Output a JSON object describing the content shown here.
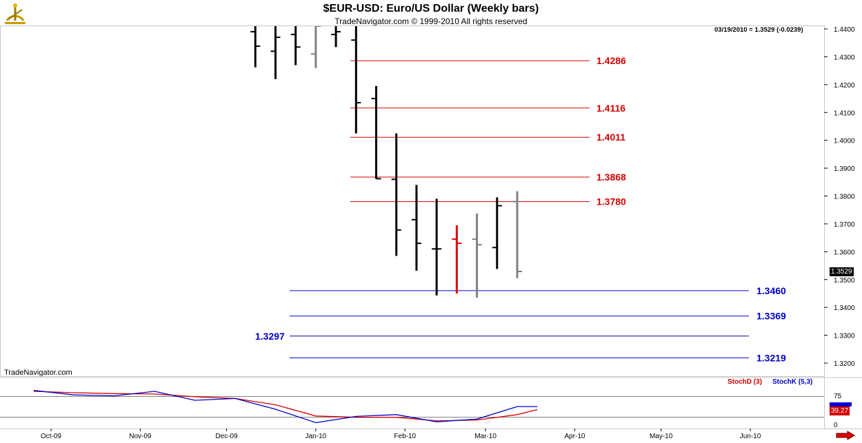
{
  "header": {
    "title": "$EUR-USD:  Euro/US Dollar  (Weekly bars)",
    "copyright": "TradeNavigator.com © 1999-2010 All rights reserved",
    "quote": "03/19/2010 = 1.3529 (-0.0239)"
  },
  "watermark": "TradeNavigator.com",
  "colors": {
    "bull_bar": "#000000",
    "gray_bar": "#7f7f7f",
    "red_bar": "#e00000",
    "resistance": "#d40000",
    "support": "#0000c8",
    "stochD": "#d40000",
    "stochK": "#0000c8"
  },
  "icons": {
    "logo": "navigator-sextant-icon",
    "next": "right-arrow-icon"
  },
  "chart_data": [
    {
      "type": "ohlc",
      "title": "$EUR-USD:  Euro/US Dollar  (Weekly bars)",
      "y_range": [
        1.315,
        1.4425
      ],
      "y_ticks": [
        "1.4400",
        "1.4300",
        "1.4200",
        "1.4100",
        "1.4000",
        "1.3900",
        "1.3800",
        "1.3700",
        "1.3600",
        "1.3500",
        "1.3400",
        "1.3300",
        "1.3200"
      ],
      "x_ticks": [
        "Oct-09",
        "Nov-09",
        "Dec-09",
        "Jan-10",
        "Feb-10",
        "Mar-10",
        "Apr-10",
        "May-10",
        "Jun-10"
      ],
      "last_price_label": "1.3529",
      "bars": [
        {
          "date": "2009-12-11",
          "open": 1.439,
          "high": 1.448,
          "low": 1.4262,
          "close": 1.4338,
          "color": "black"
        },
        {
          "date": "2009-12-18",
          "open": 1.432,
          "high": 1.441,
          "low": 1.422,
          "close": 1.437,
          "color": "black"
        },
        {
          "date": "2009-12-25",
          "open": 1.438,
          "high": 1.442,
          "low": 1.427,
          "close": 1.4335,
          "color": "black"
        },
        {
          "date": "2010-01-01",
          "open": 1.431,
          "high": 1.445,
          "low": 1.426,
          "close": 1.441,
          "color": "gray"
        },
        {
          "date": "2010-01-08",
          "open": 1.438,
          "high": 1.446,
          "low": 1.4335,
          "close": 1.439,
          "color": "black"
        },
        {
          "date": "2010-01-15",
          "open": 1.436,
          "high": 1.446,
          "low": 1.4025,
          "close": 1.4135,
          "color": "black"
        },
        {
          "date": "2010-01-22",
          "open": 1.415,
          "high": 1.4195,
          "low": 1.3862,
          "close": 1.3862,
          "color": "black"
        },
        {
          "date": "2010-01-29",
          "open": 1.386,
          "high": 1.4025,
          "low": 1.3585,
          "close": 1.3678,
          "color": "black"
        },
        {
          "date": "2010-02-05",
          "open": 1.3715,
          "high": 1.384,
          "low": 1.3532,
          "close": 1.363,
          "color": "black"
        },
        {
          "date": "2010-02-12",
          "open": 1.361,
          "high": 1.379,
          "low": 1.3443,
          "close": 1.361,
          "color": "black"
        },
        {
          "date": "2010-02-19",
          "open": 1.3645,
          "high": 1.3695,
          "low": 1.345,
          "close": 1.363,
          "color": "red"
        },
        {
          "date": "2010-02-26",
          "open": 1.3645,
          "high": 1.3737,
          "low": 1.3435,
          "close": 1.3625,
          "color": "gray"
        },
        {
          "date": "2010-03-05",
          "open": 1.3615,
          "high": 1.3795,
          "low": 1.3538,
          "close": 1.3765,
          "color": "black"
        },
        {
          "date": "2010-03-12",
          "open": 1.378,
          "high": 1.3817,
          "low": 1.3505,
          "close": 1.3529,
          "color": "gray"
        }
      ],
      "resistance_levels": [
        1.4286,
        1.4116,
        1.4011,
        1.3868,
        1.378
      ],
      "resistance_labels": [
        "1.4286",
        "1.4116",
        "1.4011",
        "1.3868",
        "1.3780"
      ],
      "support_levels": [
        1.346,
        1.3369,
        1.3297,
        1.3219
      ],
      "support_labels": [
        "1.3460",
        "1.3369",
        "1.3297",
        "1.3219"
      ]
    },
    {
      "type": "line",
      "series": [
        {
          "name": "StochD (3)",
          "color": "#d40000",
          "x": [
            "2009-09-25",
            "2009-10-09",
            "2009-10-23",
            "2009-11-06",
            "2009-11-20",
            "2009-12-04",
            "2009-12-18",
            "2010-01-01",
            "2010-01-15",
            "2010-01-29",
            "2010-02-12",
            "2010-02-26",
            "2010-03-12",
            "2010-03-19"
          ],
          "values": [
            80,
            77,
            75,
            74,
            68,
            64,
            50,
            25,
            22,
            22,
            14,
            16,
            28,
            39.27
          ]
        },
        {
          "name": "StochK (5,3)",
          "color": "#0000c8",
          "x": [
            "2009-09-25",
            "2009-10-09",
            "2009-10-23",
            "2009-11-06",
            "2009-11-20",
            "2009-12-04",
            "2009-12-18",
            "2010-01-01",
            "2010-01-15",
            "2010-01-29",
            "2010-02-12",
            "2010-02-26",
            "2010-03-12",
            "2010-03-19"
          ],
          "values": [
            82,
            72,
            70,
            80,
            60,
            64,
            40,
            10,
            24,
            28,
            12,
            18,
            46,
            46
          ]
        }
      ],
      "y_range": [
        0,
        100
      ],
      "y_ticks": [
        "75",
        "0"
      ],
      "last_value_label": "39.27",
      "legend": [
        "StochD (3)",
        "StochK (5,3)"
      ]
    }
  ]
}
